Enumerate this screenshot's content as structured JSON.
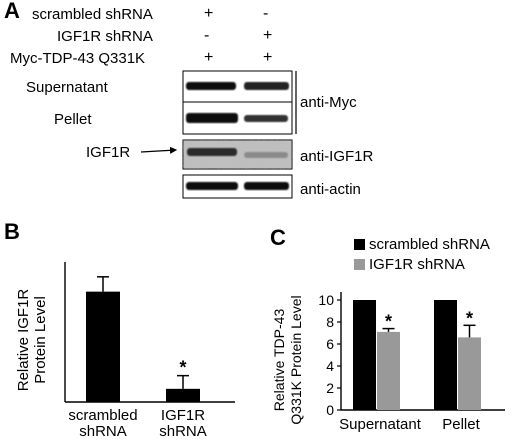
{
  "panel_a": {
    "letter": "A",
    "conditions": [
      {
        "label": "scrambled shRNA",
        "lane1": "+",
        "lane2": "-"
      },
      {
        "label": "IGF1R shRNA",
        "lane1": "-",
        "lane2": "+"
      },
      {
        "label": "Myc-TDP-43 Q331K",
        "lane1": "+",
        "lane2": "+"
      }
    ],
    "blots": {
      "supernatant": "Supernatant",
      "pellet": "Pellet",
      "igf1r": "IGF1R"
    },
    "antibodies": {
      "myc": "anti-Myc",
      "igf1r": "anti-IGF1R",
      "actin": "anti-actin"
    }
  },
  "chart_data": [
    {
      "panel": "B",
      "type": "bar",
      "categories": [
        [
          "scrambled",
          "shRNA"
        ],
        [
          "IGF1R",
          "shRNA"
        ]
      ],
      "values": [
        6.7,
        0.8
      ],
      "errors": [
        0.9,
        0.8
      ],
      "significance": [
        "",
        "*"
      ],
      "ylabel": [
        "Relative IGF1R",
        "Protein Level"
      ],
      "colors": [
        "#000000",
        "#000000"
      ]
    },
    {
      "panel": "C",
      "type": "bar",
      "categories": [
        "Supernatant",
        "Pellet"
      ],
      "series": [
        {
          "name": "scrambled shRNA",
          "color": "#000000",
          "values": [
            10,
            10
          ],
          "errors": [
            0,
            0
          ],
          "significance": [
            "",
            ""
          ]
        },
        {
          "name": "IGF1R shRNA",
          "color": "#999999",
          "values": [
            7.1,
            6.6
          ],
          "errors": [
            0.3,
            1.1
          ],
          "significance": [
            "*",
            "*"
          ]
        }
      ],
      "ylabel": [
        "Relative TDP-43",
        "Q331K Protein Level"
      ],
      "ylim": [
        0,
        10
      ],
      "yticks": [
        "0",
        "2",
        "4",
        "6",
        "8",
        "10"
      ],
      "legend": "top"
    }
  ]
}
